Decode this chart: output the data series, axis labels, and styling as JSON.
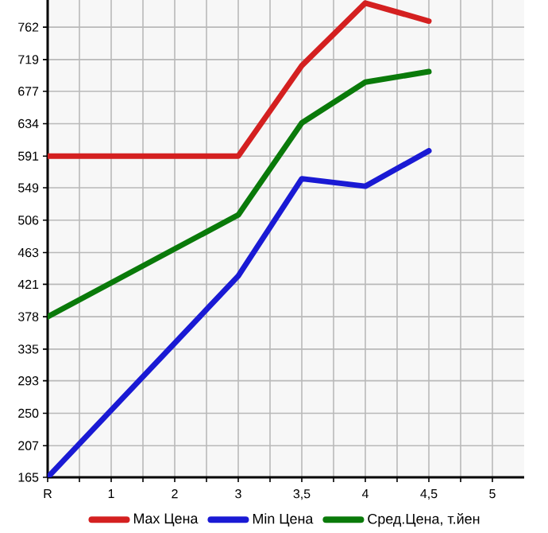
{
  "chart_data": {
    "type": "line",
    "categories": [
      "R",
      "1",
      "2",
      "3",
      "3,5",
      "4",
      "4,5",
      "5"
    ],
    "series": [
      {
        "name": "Max Цена",
        "color": "#d42020",
        "values": [
          591,
          null,
          null,
          591,
          711,
          794,
          770,
          null
        ]
      },
      {
        "name": "Min Цена",
        "color": "#1a1ad4",
        "values": [
          165,
          null,
          null,
          432,
          561,
          551,
          598,
          null
        ]
      },
      {
        "name": "Сред.Цена, т.йен",
        "color": "#0a7a0a",
        "values": [
          378,
          null,
          null,
          513,
          635,
          689,
          703,
          null
        ]
      }
    ],
    "ylim": [
      165,
      798
    ],
    "yticks": [
      165,
      207,
      250,
      293,
      335,
      378,
      421,
      463,
      506,
      549,
      591,
      634,
      677,
      719,
      762
    ],
    "grid": true,
    "legend": "bottom",
    "marker": "none",
    "line_style": "solid"
  }
}
